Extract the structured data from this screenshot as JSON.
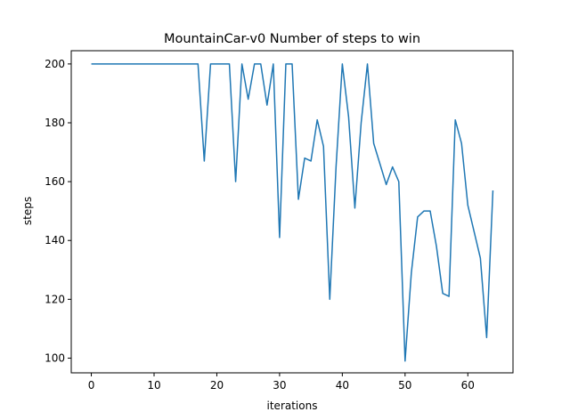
{
  "chart_data": {
    "type": "line",
    "title": "MountainCar-v0 Number of steps to win",
    "xlabel": "iterations",
    "ylabel": "steps",
    "xlim": [
      -3.2,
      67.2
    ],
    "ylim": [
      95.0,
      204.5
    ],
    "x_ticks": [
      0,
      10,
      20,
      30,
      40,
      50,
      60
    ],
    "y_ticks": [
      100,
      120,
      140,
      160,
      180,
      200
    ],
    "grid": false,
    "legend": "none",
    "series": [
      {
        "color": "#1f77b4",
        "x": [
          0,
          1,
          2,
          3,
          4,
          5,
          6,
          7,
          8,
          9,
          10,
          11,
          12,
          13,
          14,
          15,
          16,
          17,
          18,
          19,
          20,
          21,
          22,
          23,
          24,
          25,
          26,
          27,
          28,
          29,
          30,
          31,
          32,
          33,
          34,
          35,
          36,
          37,
          38,
          39,
          40,
          41,
          42,
          43,
          44,
          45,
          46,
          47,
          48,
          49,
          50,
          51,
          52,
          53,
          54,
          55,
          56,
          57,
          58,
          59,
          60,
          61,
          62,
          63,
          64
        ],
        "values": [
          200,
          200,
          200,
          200,
          200,
          200,
          200,
          200,
          200,
          200,
          200,
          200,
          200,
          200,
          200,
          200,
          200,
          200,
          167,
          200,
          200,
          200,
          200,
          160,
          200,
          188,
          200,
          200,
          186,
          200,
          141,
          200,
          200,
          154,
          168,
          167,
          181,
          172,
          120,
          165,
          200,
          182,
          151,
          180,
          200,
          173,
          166,
          159,
          165,
          160,
          99,
          129,
          148,
          150,
          150,
          138,
          122,
          121,
          181,
          173,
          152,
          143,
          134,
          107,
          157
        ]
      }
    ]
  }
}
